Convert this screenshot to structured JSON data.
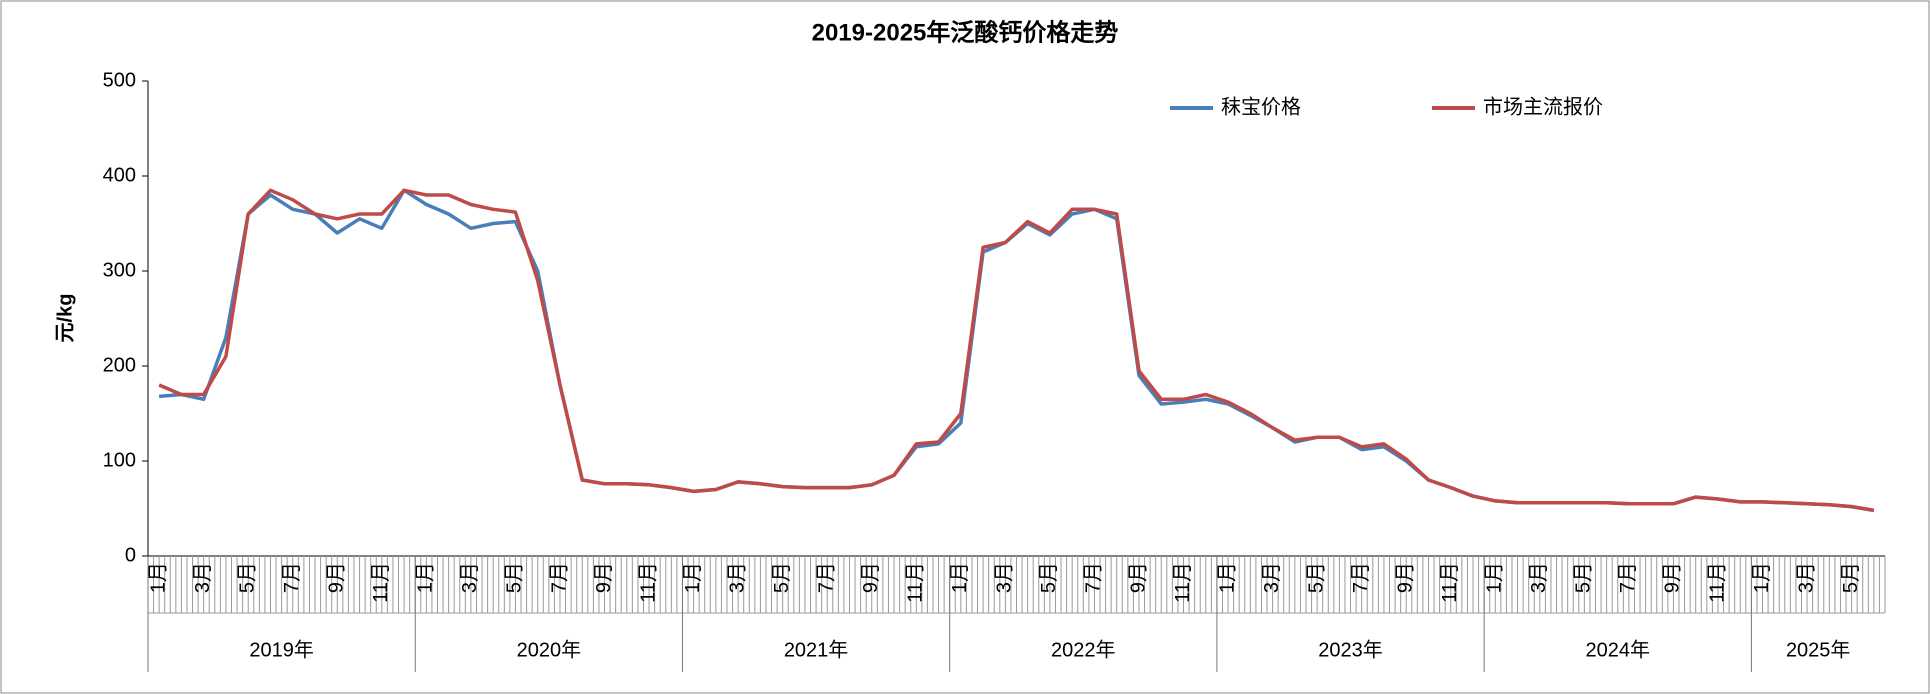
{
  "chart_data": {
    "type": "line",
    "title": "2019-2025年泛酸钙价格走势",
    "y_label": "元/kg",
    "categories": [
      "1月",
      null,
      "3月",
      null,
      "5月",
      null,
      "7月",
      null,
      "9月",
      null,
      "11月",
      null,
      "1月",
      null,
      "3月",
      null,
      "5月",
      null,
      "7月",
      null,
      "9月",
      null,
      "11月",
      null,
      "1月",
      null,
      "3月",
      null,
      "5月",
      null,
      "7月",
      null,
      "9月",
      null,
      "11月",
      null,
      "1月",
      null,
      "3月",
      null,
      "5月",
      null,
      "7月",
      null,
      "9月",
      null,
      "11月",
      null,
      "1月",
      null,
      "3月",
      null,
      "5月",
      null,
      "7月",
      null,
      "9月",
      null,
      "11月",
      null,
      "1月",
      null,
      "3月",
      null,
      "5月",
      null,
      "7月",
      null,
      "9月",
      null,
      "11月",
      null,
      "1月",
      null,
      "3月",
      null,
      "5月",
      null
    ],
    "years": [
      "2019年",
      "2020年",
      "2021年",
      "2022年",
      "2023年",
      "2024年",
      "2025年"
    ],
    "series": [
      {
        "name": "秣宝价格",
        "color": "#4a7ebb",
        "values": [
          168,
          170,
          165,
          230,
          360,
          380,
          365,
          360,
          340,
          355,
          345,
          385,
          370,
          360,
          345,
          350,
          352,
          300,
          180,
          80,
          76,
          76,
          75,
          72,
          68,
          70,
          78,
          76,
          73,
          72,
          72,
          72,
          75,
          85,
          115,
          118,
          140,
          320,
          330,
          350,
          338,
          360,
          365,
          355,
          190,
          160,
          162,
          165,
          160,
          148,
          135,
          120,
          125,
          125,
          112,
          115,
          100,
          80,
          72,
          63,
          58,
          56,
          56,
          56,
          56,
          56,
          55,
          55,
          55,
          62,
          60,
          57,
          57,
          56,
          55,
          54,
          52,
          48
        ]
      },
      {
        "name": "市场主流报价",
        "color": "#be4b48",
        "values": [
          180,
          170,
          170,
          210,
          360,
          385,
          375,
          360,
          355,
          360,
          360,
          385,
          380,
          380,
          370,
          365,
          362,
          290,
          180,
          80,
          76,
          76,
          75,
          72,
          68,
          70,
          78,
          76,
          73,
          72,
          72,
          72,
          75,
          85,
          118,
          120,
          150,
          325,
          330,
          352,
          340,
          365,
          365,
          360,
          195,
          165,
          165,
          170,
          162,
          150,
          135,
          122,
          125,
          125,
          115,
          118,
          102,
          80,
          72,
          63,
          58,
          56,
          56,
          56,
          56,
          56,
          55,
          55,
          55,
          62,
          60,
          57,
          57,
          56,
          55,
          54,
          52,
          48
        ]
      }
    ],
    "ylim": [
      0,
      500
    ],
    "yticks": [
      0,
      100,
      200,
      300,
      400,
      500
    ],
    "grid": false,
    "legend": "top-right"
  }
}
